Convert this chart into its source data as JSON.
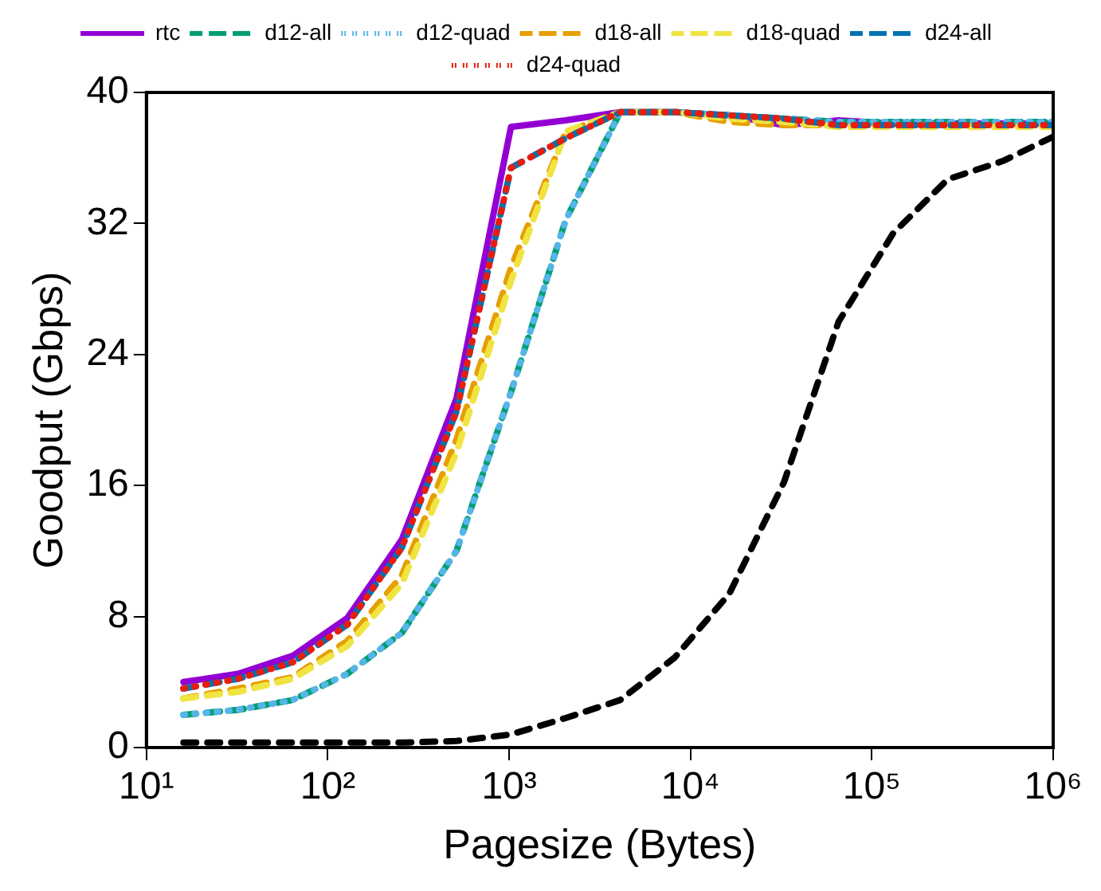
{
  "chart_data": {
    "type": "line",
    "xlabel": "Pagesize (Bytes)",
    "ylabel": "Goodput (Gbps)",
    "log": "x",
    "grid": false,
    "legend": "top",
    "marker": "none",
    "x": [
      16,
      32,
      64,
      128,
      256,
      512,
      1024,
      2048,
      4096,
      8192,
      16384,
      32768,
      65536,
      131072,
      262144,
      524288,
      1000000
    ],
    "xlim": [
      10,
      1000000
    ],
    "xticks": [
      {
        "value": 10,
        "label": "10¹"
      },
      {
        "value": 100,
        "label": "10²"
      },
      {
        "value": 1000,
        "label": "10³"
      },
      {
        "value": 10000,
        "label": "10⁴"
      },
      {
        "value": 100000,
        "label": "10⁵"
      },
      {
        "value": 1000000,
        "label": "10⁶"
      }
    ],
    "ylim": [
      0,
      40
    ],
    "yticks": [
      0,
      8,
      16,
      24,
      32,
      40
    ],
    "series": [
      {
        "name": "rtc",
        "color": "#9400d3",
        "line_style": "solid",
        "values": [
          4.0,
          4.5,
          5.6,
          7.9,
          12.7,
          21.3,
          37.9,
          38.3,
          38.8,
          38.8,
          38.6,
          38.0,
          38.3,
          38.1,
          38.1,
          38.1,
          38.1
        ]
      },
      {
        "name": "d12-all",
        "color": "#009e73",
        "line_style": "dashed",
        "values": [
          2.0,
          2.3,
          2.9,
          4.5,
          7.0,
          12.0,
          21.7,
          32.2,
          38.8,
          38.8,
          38.6,
          38.4,
          38.2,
          38.2,
          38.2,
          38.2,
          38.2
        ]
      },
      {
        "name": "d12-quad",
        "color": "#56b4e9",
        "line_style": "dotted",
        "values": [
          2.0,
          2.3,
          2.9,
          4.5,
          7.0,
          12.0,
          21.7,
          32.2,
          38.8,
          38.8,
          38.6,
          38.4,
          38.2,
          38.2,
          38.2,
          38.2,
          38.2
        ]
      },
      {
        "name": "d18-all",
        "color": "#e69f00",
        "line_style": "dashed",
        "values": [
          3.0,
          3.6,
          4.3,
          6.5,
          10.5,
          18.8,
          29.3,
          37.6,
          38.8,
          38.8,
          38.2,
          38.0,
          38.0,
          38.0,
          38.0,
          38.0,
          38.0
        ]
      },
      {
        "name": "d18-quad",
        "color": "#f0e442",
        "line_style": "dashed",
        "values": [
          3.0,
          3.4,
          4.2,
          6.2,
          10.0,
          18.0,
          28.5,
          37.6,
          38.8,
          38.8,
          38.4,
          38.2,
          37.9,
          37.9,
          37.9,
          37.9,
          37.9
        ]
      },
      {
        "name": "d24-all",
        "color": "#0072b2",
        "line_style": "dashed",
        "values": [
          3.6,
          4.2,
          5.2,
          7.5,
          12.2,
          20.5,
          35.4,
          37.2,
          38.8,
          38.8,
          38.6,
          38.4,
          38.0,
          38.0,
          38.0,
          38.0,
          38.0
        ]
      },
      {
        "name": "d24-quad",
        "color": "#e51e10",
        "line_style": "dotted",
        "values": [
          3.6,
          4.2,
          5.2,
          7.5,
          12.2,
          20.5,
          35.4,
          37.2,
          38.8,
          38.8,
          38.6,
          38.4,
          38.0,
          38.0,
          38.0,
          38.0,
          38.0
        ]
      },
      {
        "color": "#000000",
        "line_style": "dashed",
        "values": [
          0.3,
          0.3,
          0.3,
          0.3,
          0.3,
          0.4,
          0.8,
          1.8,
          2.9,
          5.5,
          9.4,
          16.2,
          26.0,
          31.4,
          34.7,
          35.8,
          37.3
        ]
      }
    ]
  }
}
